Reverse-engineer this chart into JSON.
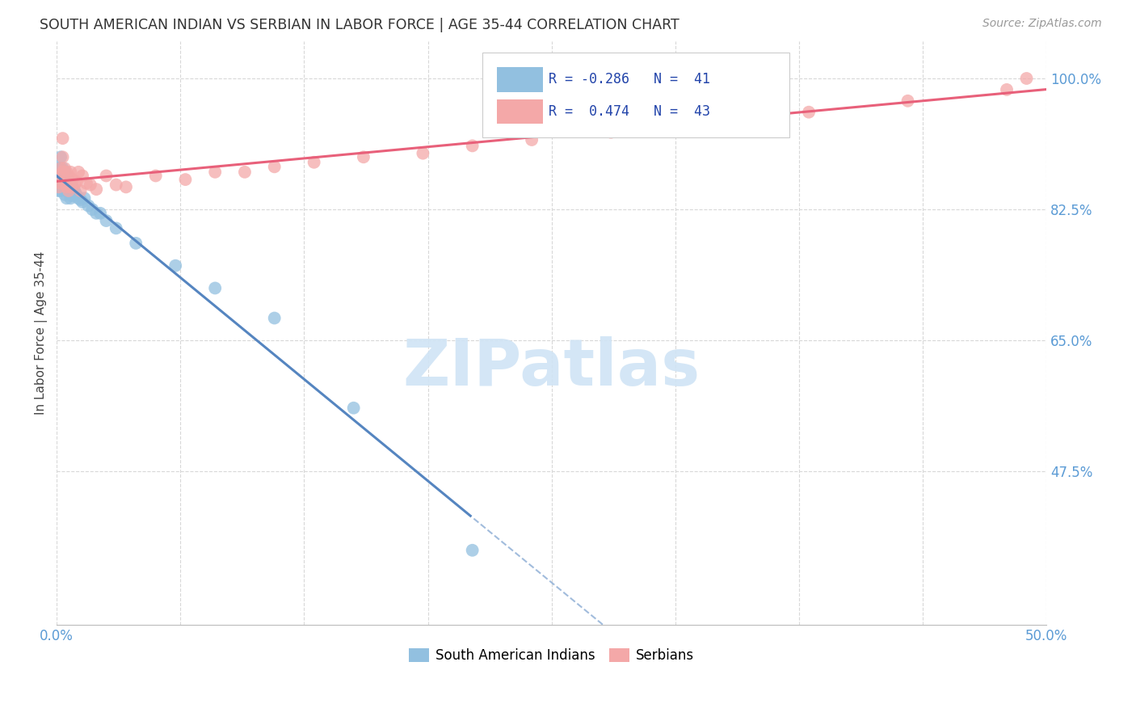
{
  "title": "SOUTH AMERICAN INDIAN VS SERBIAN IN LABOR FORCE | AGE 35-44 CORRELATION CHART",
  "source": "Source: ZipAtlas.com",
  "ylabel": "In Labor Force | Age 35-44",
  "xlim": [
    0.0,
    0.5
  ],
  "ylim": [
    0.27,
    1.05
  ],
  "ytick_positions": [
    0.475,
    0.65,
    0.825,
    1.0
  ],
  "ytick_labels": [
    "47.5%",
    "65.0%",
    "82.5%",
    "100.0%"
  ],
  "blue_R": -0.286,
  "blue_N": 41,
  "pink_R": 0.474,
  "pink_N": 43,
  "blue_color": "#92c0e0",
  "pink_color": "#f4a8a8",
  "blue_line_color": "#5585c0",
  "pink_line_color": "#e8607a",
  "watermark_color": "#d0e4f5",
  "grid_color": "#d8d8d8",
  "background_color": "#ffffff",
  "legend_blue_label": "South American Indians",
  "legend_pink_label": "Serbians",
  "blue_x": [
    0.001,
    0.001,
    0.001,
    0.001,
    0.002,
    0.002,
    0.002,
    0.002,
    0.003,
    0.003,
    0.003,
    0.004,
    0.004,
    0.004,
    0.005,
    0.005,
    0.005,
    0.006,
    0.006,
    0.007,
    0.007,
    0.008,
    0.008,
    0.009,
    0.01,
    0.011,
    0.012,
    0.013,
    0.014,
    0.016,
    0.018,
    0.02,
    0.022,
    0.025,
    0.03,
    0.04,
    0.06,
    0.08,
    0.11,
    0.15,
    0.21
  ],
  "blue_y": [
    0.87,
    0.88,
    0.86,
    0.85,
    0.895,
    0.88,
    0.87,
    0.85,
    0.88,
    0.865,
    0.855,
    0.875,
    0.858,
    0.845,
    0.87,
    0.858,
    0.84,
    0.862,
    0.848,
    0.858,
    0.84,
    0.855,
    0.843,
    0.85,
    0.845,
    0.84,
    0.838,
    0.835,
    0.84,
    0.83,
    0.825,
    0.82,
    0.82,
    0.81,
    0.8,
    0.78,
    0.75,
    0.72,
    0.68,
    0.56,
    0.37
  ],
  "pink_x": [
    0.001,
    0.001,
    0.002,
    0.002,
    0.003,
    0.003,
    0.003,
    0.004,
    0.004,
    0.005,
    0.005,
    0.006,
    0.006,
    0.007,
    0.007,
    0.008,
    0.009,
    0.01,
    0.011,
    0.012,
    0.013,
    0.015,
    0.017,
    0.02,
    0.025,
    0.03,
    0.035,
    0.05,
    0.065,
    0.08,
    0.095,
    0.11,
    0.13,
    0.155,
    0.185,
    0.21,
    0.24,
    0.28,
    0.32,
    0.38,
    0.43,
    0.48,
    0.49
  ],
  "pink_y": [
    0.87,
    0.855,
    0.88,
    0.86,
    0.92,
    0.895,
    0.875,
    0.88,
    0.86,
    0.875,
    0.855,
    0.87,
    0.85,
    0.875,
    0.855,
    0.865,
    0.858,
    0.862,
    0.875,
    0.85,
    0.87,
    0.86,
    0.858,
    0.852,
    0.87,
    0.858,
    0.855,
    0.87,
    0.865,
    0.875,
    0.875,
    0.882,
    0.888,
    0.895,
    0.9,
    0.91,
    0.918,
    0.928,
    0.94,
    0.955,
    0.97,
    0.985,
    1.0
  ]
}
